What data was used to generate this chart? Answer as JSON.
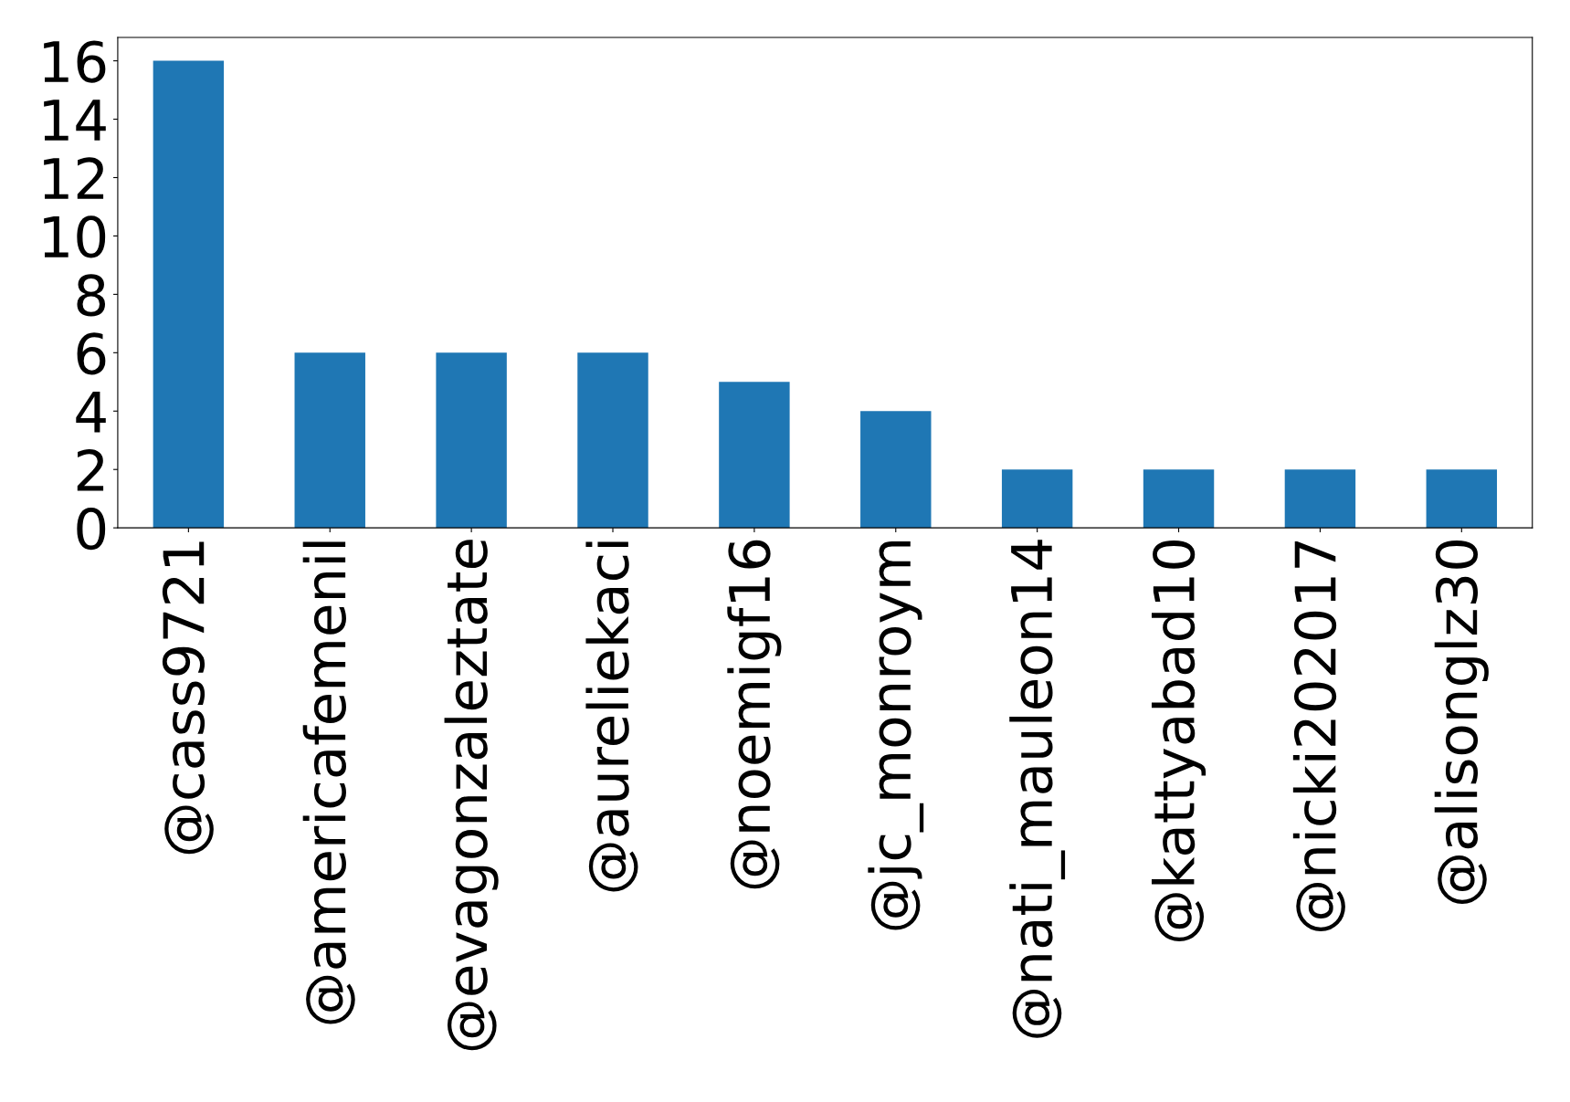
{
  "chart_data": {
    "type": "bar",
    "categories": [
      "@cass9721",
      "@americafemenil",
      "@evagonzaleztate",
      "@aureliekaci",
      "@noemigf16",
      "@jc_monroym",
      "@nati_mauleon14",
      "@kattyabad10",
      "@nicki202017",
      "@alisonglz30"
    ],
    "values": [
      16,
      6,
      6,
      6,
      5,
      4,
      2,
      2,
      2,
      2
    ],
    "color": "#1f77b4",
    "ylim": [
      0,
      16.8
    ],
    "yticks": [
      0,
      2,
      4,
      6,
      8,
      10,
      12,
      14,
      16
    ],
    "grid": false
  }
}
